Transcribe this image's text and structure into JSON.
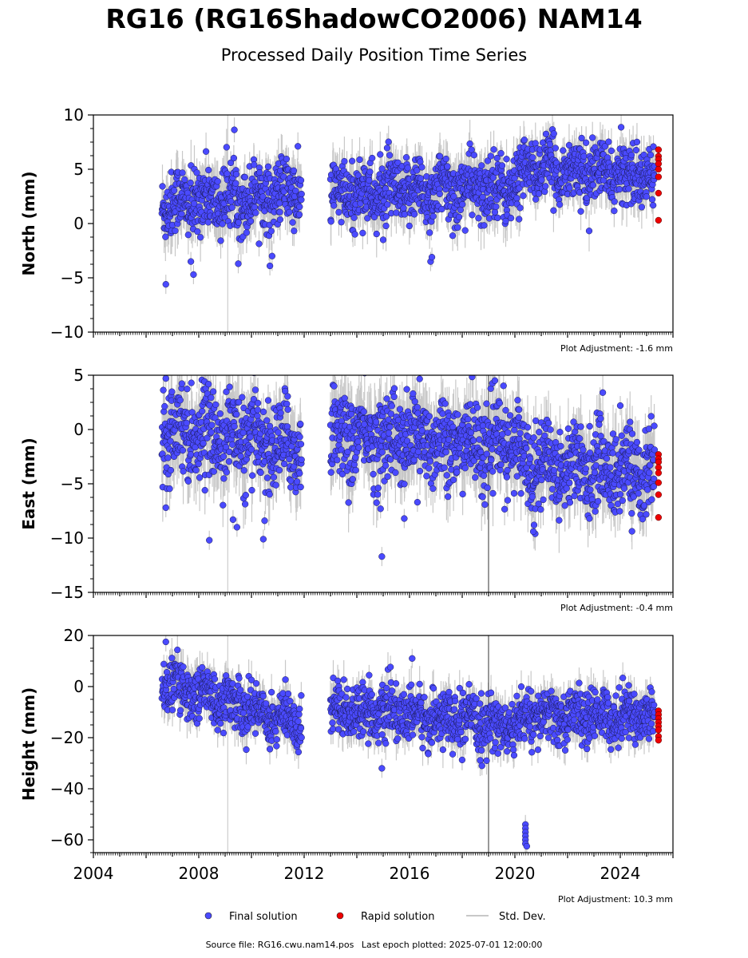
{
  "header": {
    "title": "RG16 (RG16ShadowCO2006) NAM14",
    "subtitle": "Processed Daily Position Time Series"
  },
  "legend": {
    "final_label": "Final solution",
    "rapid_label": "Rapid solution",
    "std_label": "Std. Dev.",
    "final_color": "#4a4aff",
    "rapid_color": "#ee0000",
    "std_color": "#c8c8c8"
  },
  "footer": {
    "source": "Source file: RG16.cwu.nam14.pos",
    "last_epoch": "Last epoch plotted: 2025-07-01 12:00:00"
  },
  "chart_data": [
    {
      "type": "scatter",
      "ylabel": "North (mm)",
      "ylim": [
        -10,
        10
      ],
      "yticks": [
        10,
        5,
        0,
        -5,
        -10
      ],
      "xlim": [
        2004.0,
        2026.0
      ],
      "xticks": [],
      "adjustment": "Plot Adjustment: -1.6 mm",
      "segments": [
        {
          "x": [
            2006.6,
            2011.9
          ],
          "mean": [
            1.8,
            2.9
          ],
          "spread": 1.5
        },
        {
          "x": [
            2013.0,
            2020.2
          ],
          "mean": [
            2.6,
            3.4
          ],
          "spread": 1.5
        },
        {
          "x": [
            2020.2,
            2025.3
          ],
          "mean": [
            5.2,
            4.3
          ],
          "spread": 1.3
        }
      ],
      "outliers": [
        [
          2006.75,
          -5.6
        ],
        [
          2007.8,
          -4.7
        ],
        [
          2007.7,
          -3.5
        ],
        [
          2009.5,
          -3.7
        ],
        [
          2010.7,
          -3.9
        ],
        [
          2016.8,
          -3.5
        ],
        [
          2016.85,
          -3.1
        ],
        [
          2015.0,
          -1.5
        ]
      ],
      "rapid_x": 2025.45,
      "rapid_values": [
        6.8,
        6.2,
        5.9,
        5.5,
        5.0,
        4.3,
        2.8,
        0.3
      ]
    },
    {
      "type": "scatter",
      "ylabel": "East (mm)",
      "ylim": [
        -15,
        5
      ],
      "yticks": [
        5,
        0,
        -5,
        -10,
        -15
      ],
      "xlim": [
        2004.0,
        2026.0
      ],
      "xticks": [],
      "adjustment": "Plot Adjustment: -0.4 mm",
      "segments": [
        {
          "x": [
            2006.6,
            2011.9
          ],
          "mean": [
            0.5,
            -1.8
          ],
          "spread": 2.0
        },
        {
          "x": [
            2013.0,
            2020.2
          ],
          "mean": [
            -0.5,
            -1.5
          ],
          "spread": 2.0
        },
        {
          "x": [
            2020.2,
            2025.3
          ],
          "mean": [
            -3.0,
            -4.0
          ],
          "spread": 1.9
        }
      ],
      "outliers": [
        [
          2008.4,
          -10.2
        ],
        [
          2009.3,
          -8.3
        ],
        [
          2009.45,
          -9.0
        ],
        [
          2010.5,
          -8.4
        ],
        [
          2010.45,
          -10.1
        ],
        [
          2014.95,
          -11.7
        ],
        [
          2014.9,
          -7.3
        ],
        [
          2015.8,
          -8.2
        ],
        [
          2016.3,
          -6.7
        ],
        [
          2006.75,
          4.7
        ],
        [
          2024.0,
          2.2
        ],
        [
          2006.75,
          -7.2
        ],
        [
          2020.7,
          -9.4
        ]
      ],
      "rapid_x": 2025.45,
      "rapid_values": [
        -2.3,
        -2.7,
        -3.0,
        -3.5,
        -4.0,
        -4.9,
        -6.0,
        -8.1
      ]
    },
    {
      "type": "scatter",
      "ylabel": "Height (mm)",
      "ylim": [
        -65,
        20
      ],
      "yticks": [
        20,
        0,
        -20,
        -40,
        -60
      ],
      "xlim": [
        2004.0,
        2026.0
      ],
      "xticks": [
        2004,
        2008,
        2012,
        2016,
        2020,
        2024
      ],
      "adjustment": "Plot Adjustment: 10.3 mm",
      "segments": [
        {
          "x": [
            2006.6,
            2011.9
          ],
          "mean": [
            2.0,
            -15.0
          ],
          "spread": 5.0
        },
        {
          "x": [
            2013.0,
            2020.2
          ],
          "mean": [
            -8.0,
            -16.0
          ],
          "spread": 5.0
        },
        {
          "x": [
            2020.2,
            2025.3
          ],
          "mean": [
            -12.0,
            -11.0
          ],
          "spread": 5.0
        }
      ],
      "outliers": [
        [
          2006.75,
          17.5
        ],
        [
          2014.95,
          -32.0
        ],
        [
          2018.75,
          -31.0
        ],
        [
          2016.1,
          11.0
        ],
        [
          2020.4,
          -54.0
        ],
        [
          2020.4,
          -55.5
        ],
        [
          2020.4,
          -57.0
        ],
        [
          2020.4,
          -58.5
        ],
        [
          2020.4,
          -60.0
        ],
        [
          2020.4,
          -61.5
        ],
        [
          2020.45,
          -62.5
        ]
      ],
      "rapid_x": 2025.45,
      "rapid_values": [
        -9.5,
        -11.0,
        -12.5,
        -14.0,
        -15.5,
        -17.0,
        -19.5,
        -21.0
      ]
    }
  ]
}
